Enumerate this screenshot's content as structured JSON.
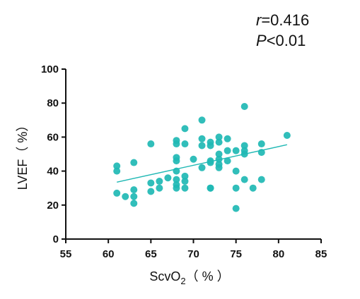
{
  "chart_data": {
    "type": "scatter",
    "title": "",
    "xlabel": "ScvO",
    "xlabel_sub": "2",
    "xlabel_unit": "（ % ）",
    "ylabel": "LVEF（ %）",
    "xlim": [
      55,
      85
    ],
    "ylim": [
      0,
      100
    ],
    "x_ticks": [
      "55",
      "60",
      "65",
      "70",
      "75",
      "80",
      "85"
    ],
    "y_ticks": [
      "0",
      "20",
      "40",
      "60",
      "80",
      "100"
    ],
    "stat_r_symbol": "r",
    "stat_r_value": "=0.416",
    "stat_p_symbol": "P",
    "stat_p_value": "<0.01",
    "point_color": "#1fb8b4",
    "line_color": "#1fb8b4",
    "fit_line": {
      "x": [
        61,
        81
      ],
      "y": [
        33.5,
        55.5
      ]
    },
    "points": [
      {
        "x": 61,
        "y": 43
      },
      {
        "x": 61,
        "y": 40
      },
      {
        "x": 61,
        "y": 27
      },
      {
        "x": 62,
        "y": 25
      },
      {
        "x": 63,
        "y": 45
      },
      {
        "x": 63,
        "y": 29
      },
      {
        "x": 63,
        "y": 25
      },
      {
        "x": 63,
        "y": 21
      },
      {
        "x": 65,
        "y": 56
      },
      {
        "x": 65,
        "y": 33
      },
      {
        "x": 65,
        "y": 28
      },
      {
        "x": 66,
        "y": 34
      },
      {
        "x": 66,
        "y": 30
      },
      {
        "x": 67,
        "y": 36
      },
      {
        "x": 68,
        "y": 58
      },
      {
        "x": 68,
        "y": 56
      },
      {
        "x": 68,
        "y": 48
      },
      {
        "x": 68,
        "y": 46
      },
      {
        "x": 68,
        "y": 40
      },
      {
        "x": 68,
        "y": 35
      },
      {
        "x": 68,
        "y": 32
      },
      {
        "x": 68,
        "y": 30
      },
      {
        "x": 69,
        "y": 65
      },
      {
        "x": 69,
        "y": 56
      },
      {
        "x": 69,
        "y": 37
      },
      {
        "x": 69,
        "y": 34
      },
      {
        "x": 69,
        "y": 30
      },
      {
        "x": 70,
        "y": 47
      },
      {
        "x": 71,
        "y": 70
      },
      {
        "x": 71,
        "y": 59
      },
      {
        "x": 71,
        "y": 55
      },
      {
        "x": 71,
        "y": 42
      },
      {
        "x": 72,
        "y": 57
      },
      {
        "x": 72,
        "y": 55
      },
      {
        "x": 72,
        "y": 46
      },
      {
        "x": 72,
        "y": 45
      },
      {
        "x": 72,
        "y": 30
      },
      {
        "x": 72,
        "y": 30
      },
      {
        "x": 73,
        "y": 60
      },
      {
        "x": 73,
        "y": 57
      },
      {
        "x": 73,
        "y": 50
      },
      {
        "x": 73,
        "y": 47
      },
      {
        "x": 73,
        "y": 44
      },
      {
        "x": 73,
        "y": 42
      },
      {
        "x": 74,
        "y": 59
      },
      {
        "x": 74,
        "y": 52
      },
      {
        "x": 74,
        "y": 46
      },
      {
        "x": 75,
        "y": 52
      },
      {
        "x": 75,
        "y": 40
      },
      {
        "x": 75,
        "y": 30
      },
      {
        "x": 75,
        "y": 18
      },
      {
        "x": 76,
        "y": 78
      },
      {
        "x": 76,
        "y": 55
      },
      {
        "x": 76,
        "y": 52
      },
      {
        "x": 76,
        "y": 50
      },
      {
        "x": 76,
        "y": 35
      },
      {
        "x": 77,
        "y": 30
      },
      {
        "x": 78,
        "y": 56
      },
      {
        "x": 78,
        "y": 51
      },
      {
        "x": 78,
        "y": 35
      },
      {
        "x": 81,
        "y": 61
      }
    ]
  }
}
